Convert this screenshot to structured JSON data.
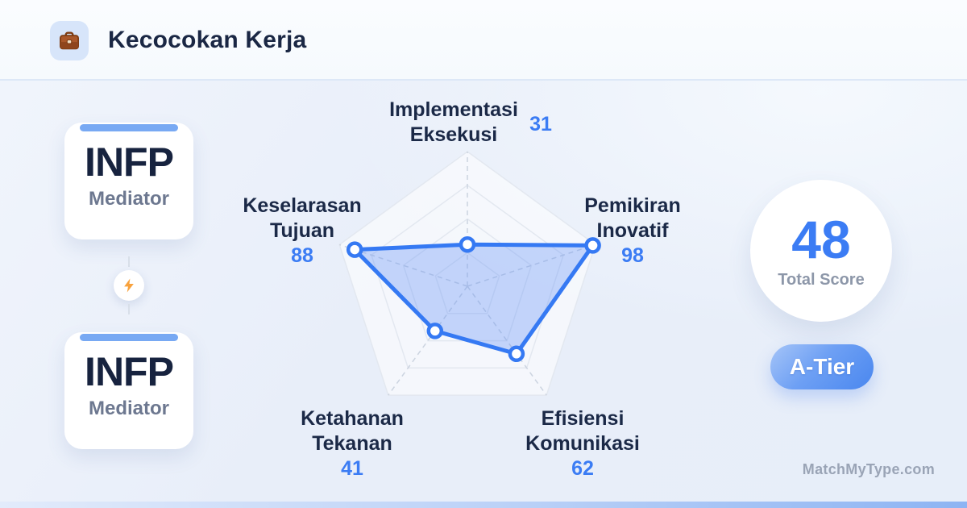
{
  "header": {
    "title": "Kecocokan Kerja",
    "icon": "briefcase"
  },
  "pair": {
    "top": {
      "code": "INFP",
      "name": "Mediator"
    },
    "bottom": {
      "code": "INFP",
      "name": "Mediator"
    },
    "connector_icon": "lightning"
  },
  "chart_data": {
    "type": "radar",
    "title": "Kecocokan Kerja",
    "max": 100,
    "grid": {
      "shape": "pentagon",
      "rings": [
        0.25,
        0.5,
        0.75,
        1
      ],
      "spokes": "dashed"
    },
    "axes": [
      {
        "label": "Implementasi Eksekusi",
        "line1": "Implementasi",
        "line2": "Eksekusi",
        "value": 31
      },
      {
        "label": "Pemikiran Inovatif",
        "line1": "Pemikiran",
        "line2": "Inovatif",
        "value": 98
      },
      {
        "label": "Efisiensi Komunikasi",
        "line1": "Efisiensi",
        "line2": "Komunikasi",
        "value": 62
      },
      {
        "label": "Ketahanan Tekanan",
        "line1": "Ketahanan",
        "line2": "Tekanan",
        "value": 41
      },
      {
        "label": "Keselarasan Tujuan",
        "line1": "Keselarasan",
        "line2": "Tujuan",
        "value": 88
      }
    ],
    "series_color": "#3579f3",
    "series_fill": "rgba(90,140,245,0.33)",
    "ring_stroke": "#e3e8f0",
    "spoke_stroke": "#ccd4e0"
  },
  "score": {
    "value": "48",
    "label": "Total Score",
    "tier": "A-Tier"
  },
  "watermark": "MatchMyType.com",
  "colors": {
    "accent_blue": "#3b7cf4",
    "navy_text": "#1b2947",
    "card_topbar": "#78a9f3",
    "tier_gradient_start": "#a6c5f8",
    "tier_gradient_end": "#4a87ef",
    "bolt_orange": "#f8a23d",
    "bottom_bar_start": "#e2ebfb",
    "bottom_bar_end": "#8db4f3"
  }
}
